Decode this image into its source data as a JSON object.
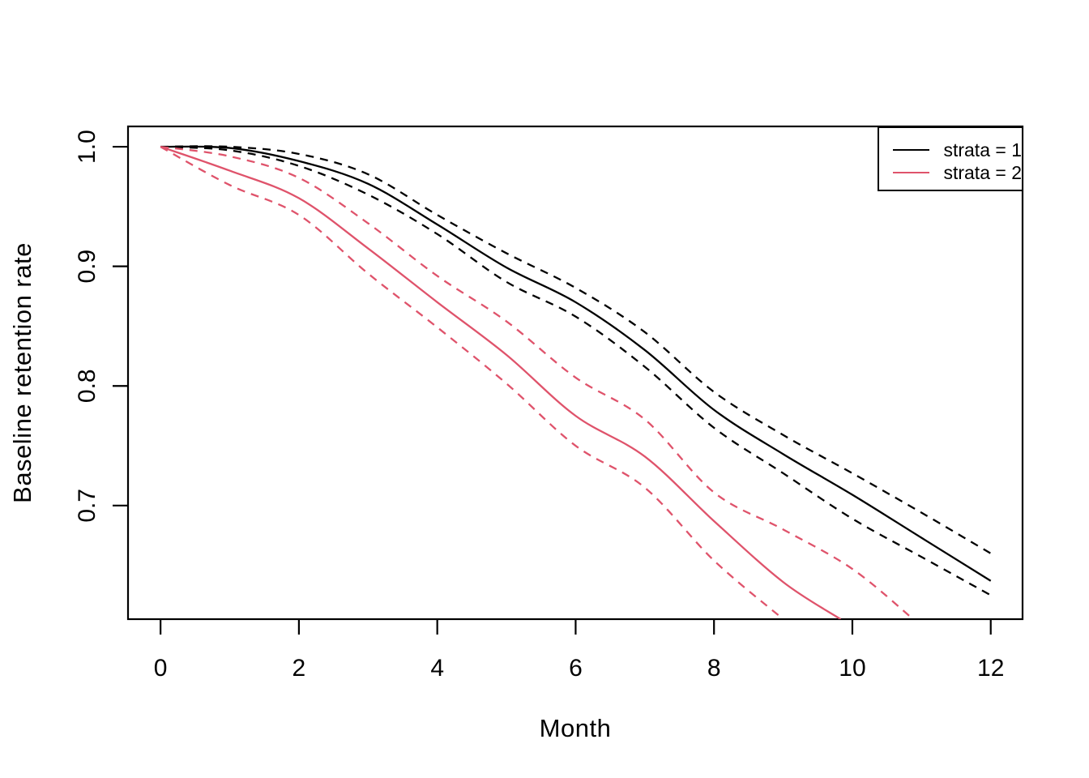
{
  "figure": {
    "background": "#ffffff",
    "axis_color": "#000000"
  },
  "chart_data": {
    "type": "line",
    "title": "",
    "xlabel": "Month",
    "ylabel": "Baseline retention rate",
    "xlim": [
      -0.47,
      12.46
    ],
    "ylim": [
      0.605,
      1.017
    ],
    "x_ticks": [
      0,
      2,
      4,
      6,
      8,
      10,
      12
    ],
    "x_tick_labels": [
      "0",
      "2",
      "4",
      "6",
      "8",
      "10",
      "12"
    ],
    "y_ticks": [
      0.7,
      0.8,
      0.9,
      1.0
    ],
    "y_tick_labels": [
      "0.7",
      "0.8",
      "0.9",
      "1.0"
    ],
    "grid": false,
    "legend": {
      "position": "top-right",
      "items": [
        {
          "label": "strata = 1",
          "color": "#000000"
        },
        {
          "label": "strata = 2",
          "color": "#DF536B"
        }
      ]
    },
    "series": [
      {
        "name": "strata-1-estimate",
        "color": "#000000",
        "style": "solid",
        "x": [
          0,
          1,
          2,
          3,
          4,
          5,
          6,
          7,
          8,
          9,
          10,
          11,
          12
        ],
        "y": [
          1.0,
          0.999,
          0.988,
          0.969,
          0.935,
          0.899,
          0.87,
          0.83,
          0.78,
          0.743,
          0.709,
          0.673,
          0.637
        ]
      },
      {
        "name": "strata-1-upper-ci",
        "color": "#000000",
        "style": "dashed",
        "x": [
          0,
          1,
          2,
          3,
          4,
          5,
          6,
          7,
          8,
          9,
          10,
          11,
          12
        ],
        "y": [
          1.0,
          1.0,
          0.994,
          0.977,
          0.943,
          0.911,
          0.882,
          0.845,
          0.795,
          0.759,
          0.727,
          0.694,
          0.66
        ]
      },
      {
        "name": "strata-1-lower-ci",
        "color": "#000000",
        "style": "dashed",
        "x": [
          0,
          1,
          2,
          3,
          4,
          5,
          6,
          7,
          8,
          9,
          10,
          11,
          12
        ],
        "y": [
          1.0,
          0.997,
          0.984,
          0.96,
          0.927,
          0.887,
          0.858,
          0.816,
          0.765,
          0.727,
          0.689,
          0.657,
          0.625
        ]
      },
      {
        "name": "strata-2-estimate",
        "color": "#DF536B",
        "style": "solid",
        "x": [
          0,
          1,
          2,
          3,
          4,
          5,
          6,
          7,
          8,
          9,
          9.83
        ],
        "y": [
          1.0,
          0.98,
          0.957,
          0.915,
          0.87,
          0.826,
          0.775,
          0.741,
          0.687,
          0.636,
          0.605
        ]
      },
      {
        "name": "strata-2-upper-ci",
        "color": "#DF536B",
        "style": "dashed",
        "x": [
          0,
          1,
          2,
          3,
          4,
          5,
          6,
          7,
          8,
          9,
          10,
          10.88
        ],
        "y": [
          1.0,
          0.992,
          0.974,
          0.936,
          0.892,
          0.854,
          0.807,
          0.772,
          0.711,
          0.68,
          0.647,
          0.605
        ]
      },
      {
        "name": "strata-2-lower-ci",
        "color": "#DF536B",
        "style": "dashed",
        "x": [
          0,
          1,
          2,
          3,
          4,
          5,
          6,
          7,
          8,
          9
        ],
        "y": [
          1.0,
          0.968,
          0.943,
          0.894,
          0.849,
          0.802,
          0.75,
          0.715,
          0.654,
          0.605
        ]
      }
    ]
  }
}
